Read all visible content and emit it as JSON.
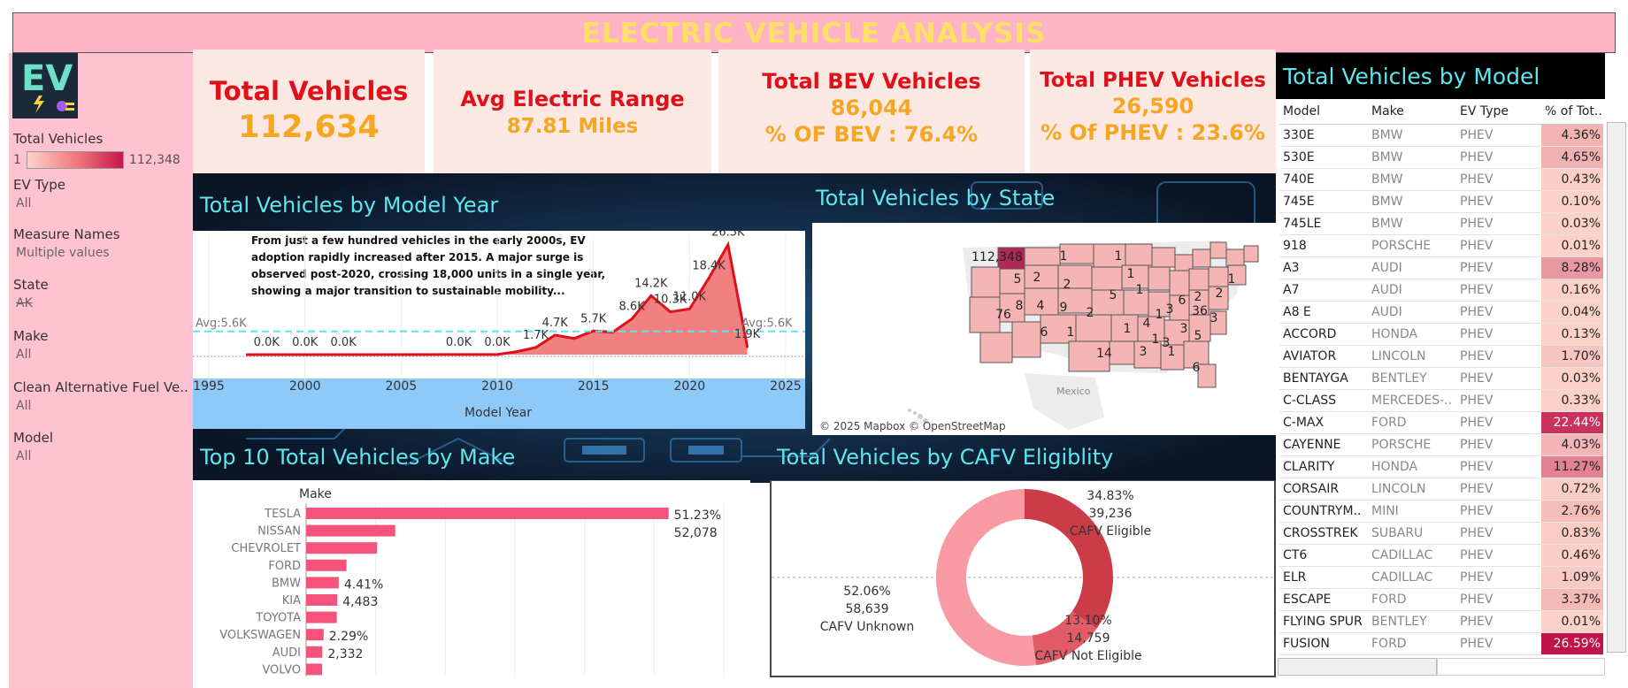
{
  "banner": {
    "title": "ELECTRIC VEHICLE ANALYSIS"
  },
  "logo": {
    "text": "EV"
  },
  "filters": {
    "total_vehicles": {
      "label": "Total Vehicles",
      "min": "1",
      "max": "112,348"
    },
    "ev_type": {
      "label": "EV Type",
      "value": "All"
    },
    "measure_names": {
      "label": "Measure Names",
      "value": "Multiple values"
    },
    "state": {
      "label": "State",
      "value": "AK"
    },
    "make": {
      "label": "Make",
      "value": "All"
    },
    "cafv": {
      "label": "Clean Alternative Fuel Ve..",
      "value": "All"
    },
    "model": {
      "label": "Model",
      "value": "All"
    }
  },
  "kpis": {
    "total": {
      "label": "Total Vehicles",
      "value": "112,634"
    },
    "range": {
      "label": "Avg Electric Range",
      "value": "87.81 Miles"
    },
    "bev": {
      "label": "Total BEV Vehicles",
      "value": "86,044",
      "pct": "% OF BEV : 76.4%"
    },
    "phev": {
      "label": "Total PHEV Vehicles",
      "value": "26,590",
      "pct": "% Of PHEV : 23.6%"
    }
  },
  "titles": {
    "model_year": "Total Vehicles by Model Year",
    "state": "Total Vehicles by State",
    "make": "Top 10 Total Vehicles by Make",
    "cafv": "Total Vehicles by CAFV Eligiblity",
    "model": "Total Vehicles by Model"
  },
  "model_year_note": {
    "line1": "From just a few hundred vehicles in the early 2000s, EV",
    "line2": "adoption rapidly increased after 2015. A major surge is",
    "line3": "observed post-2020, crossing 18,000 units in a single year,",
    "line4": "showing a major transition to sustainable mobility..."
  },
  "map": {
    "credit": "© 2025 Mapbox © OpenStreetMap",
    "country_label": "Mexico"
  },
  "chart_data": [
    {
      "type": "area",
      "title": "Total Vehicles by Model Year",
      "xlabel": "Model Year",
      "ylabel": "",
      "x_ticks": [
        1995,
        2000,
        2005,
        2010,
        2015,
        2020,
        2025
      ],
      "xlim": [
        1995,
        2025
      ],
      "ylim": [
        0,
        29000
      ],
      "reference_line": {
        "label": "Avg:5.6K",
        "value": 5600
      },
      "x": [
        1997,
        1998,
        1999,
        2000,
        2002,
        2003,
        2008,
        2010,
        2011,
        2012,
        2013,
        2014,
        2015,
        2016,
        2017,
        2018,
        2019,
        2020,
        2021,
        2022,
        2023
      ],
      "values": [
        5,
        10,
        8,
        10,
        5,
        10,
        20,
        20,
        700,
        1700,
        4700,
        3900,
        5700,
        5400,
        8600,
        14200,
        10300,
        11000,
        18400,
        26500,
        1900
      ],
      "data_labels": [
        {
          "year": 1998,
          "text": "0.0K"
        },
        {
          "year": 2000,
          "text": "0.0K"
        },
        {
          "year": 2002,
          "text": "0.0K"
        },
        {
          "year": 2008,
          "text": "0.0K"
        },
        {
          "year": 2010,
          "text": "0.0K"
        },
        {
          "year": 2012,
          "text": "1.7K"
        },
        {
          "year": 2013,
          "text": "4.7K"
        },
        {
          "year": 2015,
          "text": "5.7K"
        },
        {
          "year": 2017,
          "text": "8.6K"
        },
        {
          "year": 2018,
          "text": "14.2K"
        },
        {
          "year": 2019,
          "text": "10.3K"
        },
        {
          "year": 2020,
          "text": "11.0K"
        },
        {
          "year": 2021,
          "text": "18.4K"
        },
        {
          "year": 2022,
          "text": "26.5K"
        },
        {
          "year": 2023,
          "text": "1.9K"
        }
      ]
    },
    {
      "type": "bar",
      "orientation": "horizontal",
      "title": "Top 10 Total Vehicles by Make",
      "category_header": "Make",
      "categories": [
        "TESLA",
        "NISSAN",
        "CHEVROLET",
        "FORD",
        "BMW",
        "KIA",
        "TOYOTA",
        "VOLKSWAGEN",
        "AUDI",
        "VOLVO"
      ],
      "values": [
        52078,
        12800,
        10200,
        5800,
        4680,
        4483,
        4400,
        2514,
        2332,
        2300
      ],
      "xlim": [
        0,
        60000
      ],
      "bar_labels": [
        {
          "category": "TESLA",
          "pct": "51.23%",
          "value": "52,078"
        },
        {
          "category": "BMW",
          "pct": "4.41%"
        },
        {
          "category": "KIA",
          "value": "4,483"
        },
        {
          "category": "VOLKSWAGEN",
          "pct": "2.29%"
        },
        {
          "category": "AUDI",
          "value": "2,332"
        }
      ]
    },
    {
      "type": "pie",
      "donut": true,
      "title": "Total Vehicles by CAFV Eligiblity",
      "slices": [
        {
          "name": "CAFV Eligible",
          "value": 39236,
          "pct": "34.83%",
          "value_label": "39,236",
          "color": "#cc3b48"
        },
        {
          "name": "CAFV Not Eligible",
          "value": 14759,
          "pct": "13.10%",
          "value_label": "14,759",
          "color": "#e25c68"
        },
        {
          "name": "CAFV Unknown",
          "value": 58639,
          "pct": "52.06%",
          "value_label": "58,639",
          "color": "#f79aa3"
        }
      ]
    },
    {
      "type": "map",
      "title": "Total Vehicles by State",
      "highlight": {
        "state": "WA",
        "value": "112,348"
      },
      "labels": [
        {
          "text": "112,348",
          "x": 1095,
          "y": 288
        }
      ]
    },
    {
      "type": "table",
      "title": "Total Vehicles by Model",
      "columns": [
        "Model",
        "Make",
        "EV Type",
        "% of Tot.."
      ],
      "rows": [
        {
          "model": "330E",
          "make": "BMW",
          "type": "PHEV",
          "pct": "4.36%",
          "share": 4.36
        },
        {
          "model": "530E",
          "make": "BMW",
          "type": "PHEV",
          "pct": "4.65%",
          "share": 4.65
        },
        {
          "model": "740E",
          "make": "BMW",
          "type": "PHEV",
          "pct": "0.43%",
          "share": 0.43
        },
        {
          "model": "745E",
          "make": "BMW",
          "type": "PHEV",
          "pct": "0.10%",
          "share": 0.1
        },
        {
          "model": "745LE",
          "make": "BMW",
          "type": "PHEV",
          "pct": "0.03%",
          "share": 0.03
        },
        {
          "model": "918",
          "make": "PORSCHE",
          "type": "PHEV",
          "pct": "0.01%",
          "share": 0.01
        },
        {
          "model": "A3",
          "make": "AUDI",
          "type": "PHEV",
          "pct": "8.28%",
          "share": 8.28
        },
        {
          "model": "A7",
          "make": "AUDI",
          "type": "PHEV",
          "pct": "0.16%",
          "share": 0.16
        },
        {
          "model": "A8 E",
          "make": "AUDI",
          "type": "PHEV",
          "pct": "0.04%",
          "share": 0.04
        },
        {
          "model": "ACCORD",
          "make": "HONDA",
          "type": "PHEV",
          "pct": "0.13%",
          "share": 0.13
        },
        {
          "model": "AVIATOR",
          "make": "LINCOLN",
          "type": "PHEV",
          "pct": "1.70%",
          "share": 1.7
        },
        {
          "model": "BENTAYGA",
          "make": "BENTLEY",
          "type": "PHEV",
          "pct": "0.03%",
          "share": 0.03
        },
        {
          "model": "C-CLASS",
          "make": "MERCEDES-..",
          "type": "PHEV",
          "pct": "0.33%",
          "share": 0.33
        },
        {
          "model": "C-MAX",
          "make": "FORD",
          "type": "PHEV",
          "pct": "22.44%",
          "share": 22.44
        },
        {
          "model": "CAYENNE",
          "make": "PORSCHE",
          "type": "PHEV",
          "pct": "4.03%",
          "share": 4.03
        },
        {
          "model": "CLARITY",
          "make": "HONDA",
          "type": "PHEV",
          "pct": "11.27%",
          "share": 11.27
        },
        {
          "model": "CORSAIR",
          "make": "LINCOLN",
          "type": "PHEV",
          "pct": "0.72%",
          "share": 0.72
        },
        {
          "model": "COUNTRYM..",
          "make": "MINI",
          "type": "PHEV",
          "pct": "2.76%",
          "share": 2.76
        },
        {
          "model": "CROSSTREK",
          "make": "SUBARU",
          "type": "PHEV",
          "pct": "0.83%",
          "share": 0.83
        },
        {
          "model": "CT6",
          "make": "CADILLAC",
          "type": "PHEV",
          "pct": "0.46%",
          "share": 0.46
        },
        {
          "model": "ELR",
          "make": "CADILLAC",
          "type": "PHEV",
          "pct": "1.09%",
          "share": 1.09
        },
        {
          "model": "ESCAPE",
          "make": "FORD",
          "type": "PHEV",
          "pct": "3.37%",
          "share": 3.37
        },
        {
          "model": "FLYING SPUR",
          "make": "BENTLEY",
          "type": "PHEV",
          "pct": "0.01%",
          "share": 0.01
        },
        {
          "model": "FUSION",
          "make": "FORD",
          "type": "PHEV",
          "pct": "26.59%",
          "share": 26.59
        }
      ]
    }
  ]
}
